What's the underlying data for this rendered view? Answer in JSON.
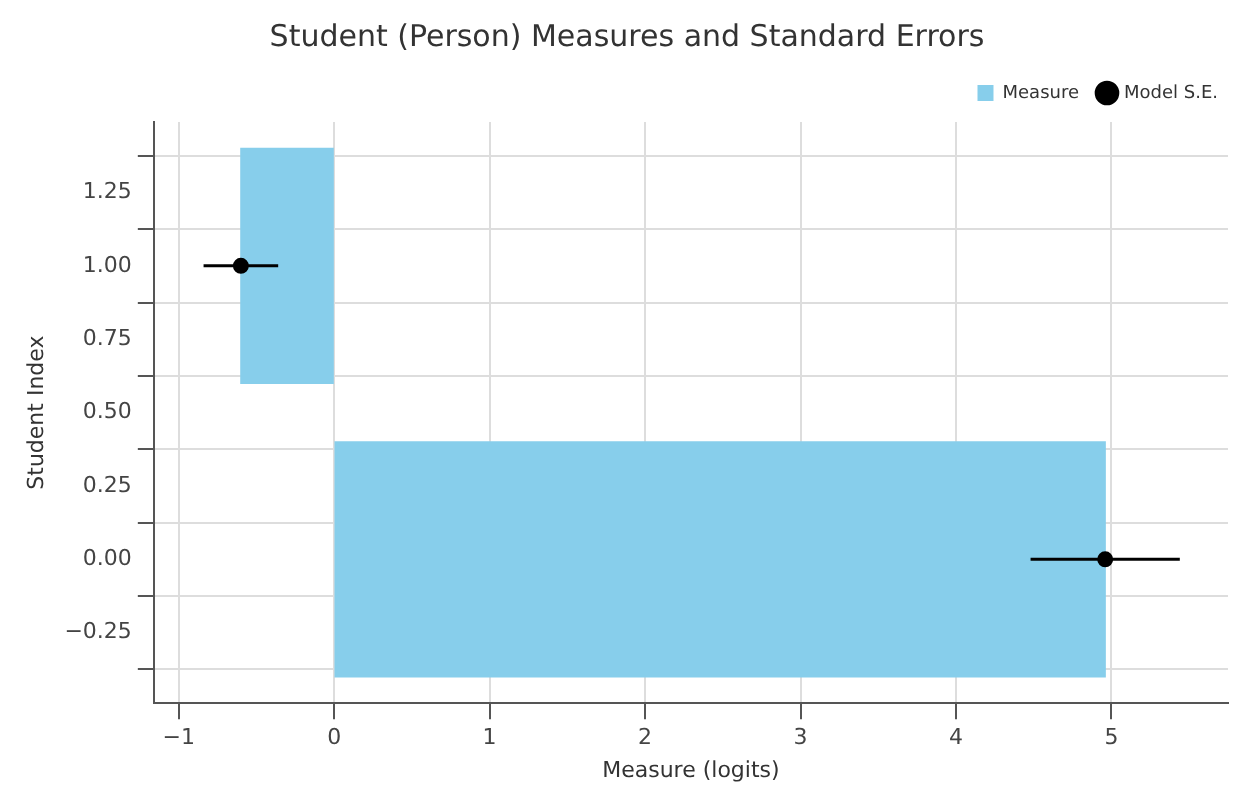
{
  "chart_data": {
    "type": "bar",
    "orientation": "horizontal",
    "title": "Student (Person) Measures and Standard Errors",
    "xlabel": "Measure (logits)",
    "ylabel": "Student Index",
    "x": [
      0,
      1
    ],
    "series": [
      {
        "name": "Measure",
        "color": "#87ceeb",
        "values": [
          4.96,
          -0.6
        ]
      },
      {
        "name": "Model S.E.",
        "type": "scatter",
        "color": "#000000",
        "values": [
          4.96,
          -0.6
        ],
        "errors": [
          0.48,
          0.24
        ]
      }
    ],
    "xlim": [
      -1.16,
      5.75
    ],
    "xticks": [
      {
        "value": -1,
        "label": "−1"
      },
      0,
      1,
      2,
      3,
      4,
      5
    ],
    "ylim": [
      -0.49,
      1.49
    ],
    "yticks": [
      {
        "value": -0.25,
        "label": "−0.25"
      },
      {
        "value": 0,
        "label": "0.00"
      },
      {
        "value": 0.25,
        "label": "0.25"
      },
      {
        "value": 0.5,
        "label": "0.50"
      },
      {
        "value": 0.75,
        "label": "0.75"
      },
      {
        "value": 1,
        "label": "1.00"
      },
      {
        "value": 1.25,
        "label": "1.25"
      }
    ],
    "grid": true,
    "legend": "top right",
    "marker": "circle"
  }
}
